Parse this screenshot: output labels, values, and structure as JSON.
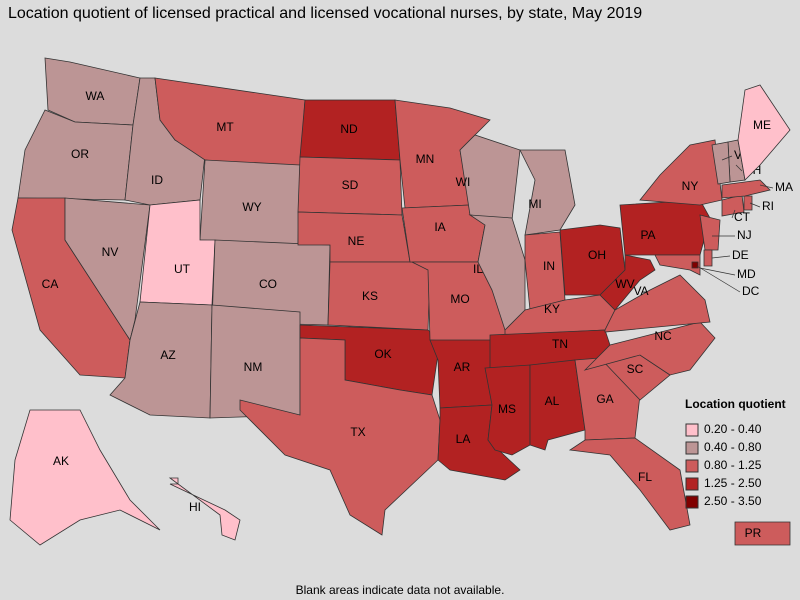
{
  "title": "Location quotient of licensed practical and licensed vocational nurses, by state, May 2019",
  "footnote": "Blank areas indicate data not available.",
  "legend": {
    "title": "Location quotient",
    "items": [
      {
        "label": "0.20 - 0.40",
        "color": "#ffc0cb"
      },
      {
        "label": "0.40 - 0.80",
        "color": "#bc9595"
      },
      {
        "label": "0.80 - 1.25",
        "color": "#cd5c5c"
      },
      {
        "label": "1.25 - 2.50",
        "color": "#b22222"
      },
      {
        "label": "2.50 - 3.50",
        "color": "#800000"
      }
    ]
  },
  "states": [
    {
      "label": "WA",
      "color": "#bc9595"
    },
    {
      "label": "OR",
      "color": "#bc9595"
    },
    {
      "label": "CA",
      "color": "#cd5c5c"
    },
    {
      "label": "NV",
      "color": "#bc9595"
    },
    {
      "label": "ID",
      "color": "#bc9595"
    },
    {
      "label": "MT",
      "color": "#cd5c5c"
    },
    {
      "label": "WY",
      "color": "#bc9595"
    },
    {
      "label": "UT",
      "color": "#ffc0cb"
    },
    {
      "label": "CO",
      "color": "#bc9595"
    },
    {
      "label": "AZ",
      "color": "#bc9595"
    },
    {
      "label": "NM",
      "color": "#bc9595"
    },
    {
      "label": "ND",
      "color": "#b22222"
    },
    {
      "label": "SD",
      "color": "#cd5c5c"
    },
    {
      "label": "NE",
      "color": "#cd5c5c"
    },
    {
      "label": "KS",
      "color": "#cd5c5c"
    },
    {
      "label": "OK",
      "color": "#b22222"
    },
    {
      "label": "TX",
      "color": "#cd5c5c"
    },
    {
      "label": "MN",
      "color": "#cd5c5c"
    },
    {
      "label": "IA",
      "color": "#cd5c5c"
    },
    {
      "label": "MO",
      "color": "#cd5c5c"
    },
    {
      "label": "AR",
      "color": "#b22222"
    },
    {
      "label": "LA",
      "color": "#b22222"
    },
    {
      "label": "WI",
      "color": "#bc9595"
    },
    {
      "label": "IL",
      "color": "#bc9595"
    },
    {
      "label": "MI",
      "color": "#bc9595"
    },
    {
      "label": "IN",
      "color": "#cd5c5c"
    },
    {
      "label": "OH",
      "color": "#b22222"
    },
    {
      "label": "KY",
      "color": "#cd5c5c"
    },
    {
      "label": "TN",
      "color": "#b22222"
    },
    {
      "label": "MS",
      "color": "#b22222"
    },
    {
      "label": "AL",
      "color": "#b22222"
    },
    {
      "label": "GA",
      "color": "#cd5c5c"
    },
    {
      "label": "FL",
      "color": "#cd5c5c"
    },
    {
      "label": "SC",
      "color": "#cd5c5c"
    },
    {
      "label": "NC",
      "color": "#cd5c5c"
    },
    {
      "label": "VA",
      "color": "#cd5c5c"
    },
    {
      "label": "WV",
      "color": "#b22222"
    },
    {
      "label": "PA",
      "color": "#b22222"
    },
    {
      "label": "NY",
      "color": "#cd5c5c"
    },
    {
      "label": "NJ",
      "color": "#cd5c5c"
    },
    {
      "label": "DE",
      "color": "#cd5c5c"
    },
    {
      "label": "MD",
      "color": "#cd5c5c"
    },
    {
      "label": "DC",
      "color": "#800000"
    },
    {
      "label": "CT",
      "color": "#cd5c5c"
    },
    {
      "label": "RI",
      "color": "#cd5c5c"
    },
    {
      "label": "MA",
      "color": "#cd5c5c"
    },
    {
      "label": "NH",
      "color": "#bc9595"
    },
    {
      "label": "VT",
      "color": "#bc9595"
    },
    {
      "label": "ME",
      "color": "#ffc0cb"
    },
    {
      "label": "AK",
      "color": "#ffc0cb"
    },
    {
      "label": "HI",
      "color": "#ffc0cb"
    },
    {
      "label": "PR",
      "color": "#cd5c5c"
    }
  ]
}
